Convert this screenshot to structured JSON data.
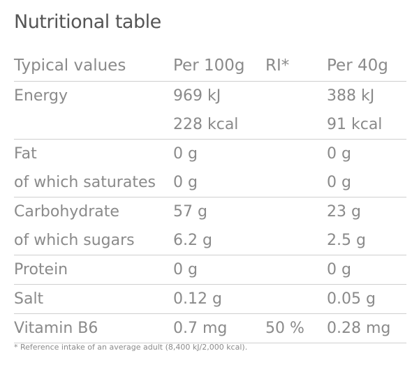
{
  "title": "Nutritional table",
  "headers": {
    "label": "Typical values",
    "per100": "Per 100g",
    "ri": "RI*",
    "per40": "Per 40g"
  },
  "rows": [
    {
      "label": "Energy",
      "per100": "969 kJ",
      "ri": "",
      "per40": "388 kJ"
    },
    {
      "label": "",
      "per100": "228 kcal",
      "ri": "",
      "per40": "91 kcal"
    },
    {
      "label": "Fat",
      "per100": "0 g",
      "ri": "",
      "per40": "0 g"
    },
    {
      "label": "of which saturates",
      "per100": "0 g",
      "ri": "",
      "per40": "0 g"
    },
    {
      "label": "Carbohydrate",
      "per100": "57 g",
      "ri": "",
      "per40": "23 g"
    },
    {
      "label": "of which sugars",
      "per100": "6.2 g",
      "ri": "",
      "per40": "2.5 g"
    },
    {
      "label": "Protein",
      "per100": "0 g",
      "ri": "",
      "per40": "0 g"
    },
    {
      "label": "Salt",
      "per100": "0.12 g",
      "ri": "",
      "per40": "0.05 g"
    },
    {
      "label": "Vitamin B6",
      "per100": "0.7 mg",
      "ri": "50 %",
      "per40": "0.28 mg"
    }
  ],
  "footnote": "* Reference intake of an average adult (8,400 kJ/2,000 kcal)."
}
